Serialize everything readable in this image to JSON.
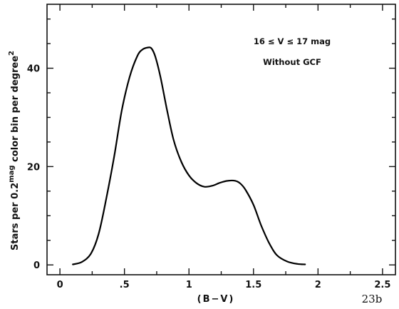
{
  "chart_data": {
    "type": "line",
    "xlabel": "(B−V)",
    "ylabel": "Stars per 0.2 mag color bin per degree",
    "ylabel_superscript_mag": "mag",
    "ylabel_superscript_2": "2",
    "xlim": [
      -0.1,
      2.6
    ],
    "ylim": [
      -2,
      53
    ],
    "x_ticks": [
      0,
      0.5,
      1,
      1.5,
      2,
      2.5
    ],
    "x_tick_labels": [
      "0",
      ".5",
      "1",
      "1.5",
      "2",
      "2.5"
    ],
    "y_ticks": [
      0,
      20,
      40
    ],
    "y_tick_labels": [
      "0",
      "20",
      "40"
    ],
    "annotation_line1": "16 ≤ V ≤ 17 mag",
    "annotation_line2": "Without GCF",
    "figure_label": "23b",
    "grid": false,
    "series": [
      {
        "x": [
          0.1,
          0.17,
          0.24,
          0.3,
          0.36,
          0.42,
          0.48,
          0.54,
          0.6,
          0.64,
          0.68,
          0.71,
          0.74,
          0.78,
          0.83,
          0.88,
          0.94,
          1.0,
          1.06,
          1.12,
          1.18,
          1.24,
          1.3,
          1.36,
          1.4,
          1.44,
          1.5,
          1.56,
          1.62,
          1.68,
          1.76,
          1.84,
          1.9
        ],
        "y": [
          0.1,
          0.6,
          2.3,
          6.3,
          13.6,
          22.0,
          31.5,
          38.2,
          42.5,
          43.8,
          44.2,
          44.0,
          42.3,
          38.1,
          31.5,
          25.5,
          21.0,
          18.2,
          16.6,
          15.9,
          16.1,
          16.7,
          17.1,
          17.1,
          16.5,
          15.2,
          12.2,
          8.0,
          4.5,
          2.0,
          0.7,
          0.2,
          0.1
        ]
      }
    ]
  }
}
